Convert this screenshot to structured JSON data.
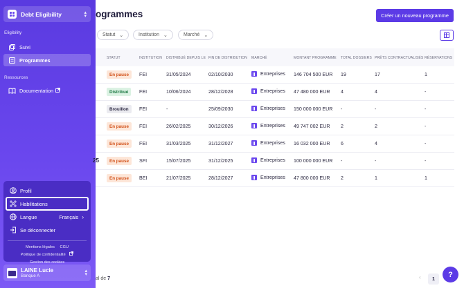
{
  "sidebar": {
    "app_name": "Debt Eligibility",
    "section_eligibility": "Eligibility",
    "nav": [
      {
        "label": "Suivi",
        "icon": "follow-up-icon"
      },
      {
        "label": "Programmes",
        "icon": "programs-icon",
        "active": true
      }
    ],
    "section_resources": "Ressources",
    "documentation": {
      "label": "Documentation",
      "icon": "book-icon"
    },
    "user": {
      "name": "LAINE Lucie",
      "org": "Banque A"
    }
  },
  "user_menu": {
    "profile": "Profil",
    "habilitations": "Habilitations",
    "language_label": "Langue",
    "language_value": "Français",
    "logout": "Se déconnecter",
    "legal": "Mentions légales",
    "cgu": "CGU",
    "privacy": "Politique de confidentialité",
    "cookies": "Gestion des cookies"
  },
  "main": {
    "title": "ogrammes",
    "create_button": "Créer un nouveau programme",
    "filters": [
      "Statut",
      "Institution",
      "Marché"
    ]
  },
  "table": {
    "columns": [
      "STATUT",
      "INSTITUTION",
      "DISTRIBUÉ DEPUIS LE",
      "FIN DE DISTRIBUTION",
      "MARCHÉ",
      "MONTANT PROGRAMME",
      "TOTAL DOSSIERS",
      "PRÊTS CONTRACTUALISÉS",
      "RÉSERVATIONS"
    ],
    "rows": [
      {
        "status": "En pause",
        "institution": "FEI",
        "since": "31/05/2024",
        "end": "02/10/2030",
        "market": "Entreprises",
        "amount": "146 704 500 EUR",
        "files": "19",
        "loans": "17",
        "reservations": "1"
      },
      {
        "status": "Distribué",
        "institution": "FEI",
        "since": "10/06/2024",
        "end": "28/12/2028",
        "market": "Entreprises",
        "amount": "47 480 000 EUR",
        "files": "4",
        "loans": "4",
        "reservations": "-"
      },
      {
        "status": "Brouillon",
        "institution": "FEI",
        "since": "-",
        "end": "25/09/2030",
        "market": "Entreprises",
        "amount": "150 000 000 EUR",
        "files": "-",
        "loans": "-",
        "reservations": "-"
      },
      {
        "status": "En pause",
        "institution": "FEI",
        "since": "26/02/2025",
        "end": "30/12/2026",
        "market": "Entreprises",
        "amount": "49 747 002 EUR",
        "files": "2",
        "loans": "2",
        "reservations": "-"
      },
      {
        "status": "En pause",
        "institution": "FEI",
        "since": "31/03/2025",
        "end": "31/12/2027",
        "market": "Entreprises",
        "amount": "16 032 000 EUR",
        "files": "6",
        "loans": "4",
        "reservations": "-"
      },
      {
        "status": "En pause",
        "institution": "SFI",
        "since": "15/07/2025",
        "end": "31/12/2025",
        "market": "Entreprises",
        "amount": "100 000 000 EUR",
        "files": "-",
        "loans": "-",
        "reservations": "-",
        "left_fragment": "25"
      },
      {
        "status": "En pause",
        "institution": "BEI",
        "since": "21/07/2025",
        "end": "28/12/2027",
        "market": "Entreprises",
        "amount": "47 800 000 EUR",
        "files": "2",
        "loans": "1",
        "reservations": "1"
      }
    ]
  },
  "footer": {
    "count_prefix": "al de",
    "count_total": "7",
    "page": "1",
    "prev_icon": "‹",
    "next_icon": "›"
  },
  "help_label": "?",
  "colors": {
    "sidebar": "#6a47ee",
    "accent": "#5c3be6",
    "badge_pause_bg": "#fde6d8",
    "badge_pause_fg": "#d2521b",
    "badge_distribue_bg": "#dbf2e3",
    "badge_distribue_fg": "#1f7a45",
    "badge_brouillon_bg": "#ebebf0",
    "badge_brouillon_fg": "#2d2a42"
  }
}
